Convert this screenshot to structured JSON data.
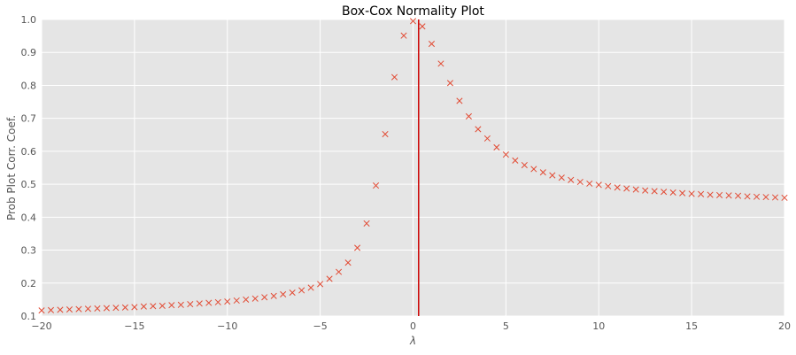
{
  "chart_data": {
    "type": "scatter",
    "title": "Box-Cox Normality Plot",
    "xlabel": "λ",
    "ylabel": "Prob Plot Corr. Coef.",
    "xlim": [
      -20,
      20
    ],
    "ylim": [
      0.1,
      1.0
    ],
    "xticks": [
      -20,
      -15,
      -10,
      -5,
      0,
      5,
      10,
      15,
      20
    ],
    "xtick_labels": [
      "−20",
      "−15",
      "−10",
      "−5",
      "0",
      "5",
      "10",
      "15",
      "20"
    ],
    "yticks": [
      0.1,
      0.2,
      0.3,
      0.4,
      0.5,
      0.6,
      0.7,
      0.8,
      0.9,
      1.0
    ],
    "ytick_labels": [
      "0.1",
      "0.2",
      "0.3",
      "0.4",
      "0.5",
      "0.6",
      "0.7",
      "0.8",
      "0.9",
      "1.0"
    ],
    "grid": true,
    "style": {
      "background": "#e5e5e5",
      "grid_color": "#ffffff",
      "marker": "x",
      "marker_color": "#e24a33",
      "vline_color": "#cc0000"
    },
    "vline_x": 0.3,
    "series": [
      {
        "x": [
          -20,
          -19.5,
          -19,
          -18.5,
          -18,
          -17.5,
          -17,
          -16.5,
          -16,
          -15.5,
          -15,
          -14.5,
          -14,
          -13.5,
          -13,
          -12.5,
          -12,
          -11.5,
          -11,
          -10.5,
          -10,
          -9.5,
          -9,
          -8.5,
          -8,
          -7.5,
          -7,
          -6.5,
          -6,
          -5.5,
          -5,
          -4.5,
          -4,
          -3.5,
          -3,
          -2.5,
          -2,
          -1.5,
          -1,
          -0.5,
          0,
          0.5,
          1,
          1.5,
          2,
          2.5,
          3,
          3.5,
          4,
          4.5,
          5,
          5.5,
          6,
          6.5,
          7,
          7.5,
          8,
          8.5,
          9,
          9.5,
          10,
          10.5,
          11,
          11.5,
          12,
          12.5,
          13,
          13.5,
          14,
          14.5,
          15,
          15.5,
          16,
          16.5,
          17,
          17.5,
          18,
          18.5,
          19,
          19.5,
          20
        ],
        "y": [
          0.117,
          0.118,
          0.119,
          0.12,
          0.121,
          0.122,
          0.123,
          0.124,
          0.125,
          0.126,
          0.127,
          0.129,
          0.13,
          0.131,
          0.133,
          0.134,
          0.136,
          0.138,
          0.14,
          0.142,
          0.144,
          0.147,
          0.15,
          0.153,
          0.157,
          0.161,
          0.166,
          0.171,
          0.178,
          0.186,
          0.197,
          0.213,
          0.234,
          0.262,
          0.307,
          0.381,
          0.496,
          0.652,
          0.825,
          0.951,
          0.995,
          0.979,
          0.926,
          0.866,
          0.807,
          0.753,
          0.706,
          0.667,
          0.639,
          0.612,
          0.59,
          0.572,
          0.558,
          0.546,
          0.536,
          0.527,
          0.52,
          0.513,
          0.507,
          0.502,
          0.498,
          0.494,
          0.49,
          0.487,
          0.484,
          0.481,
          0.479,
          0.477,
          0.475,
          0.473,
          0.471,
          0.47,
          0.468,
          0.467,
          0.466,
          0.465,
          0.463,
          0.462,
          0.461,
          0.46,
          0.459
        ]
      }
    ]
  }
}
